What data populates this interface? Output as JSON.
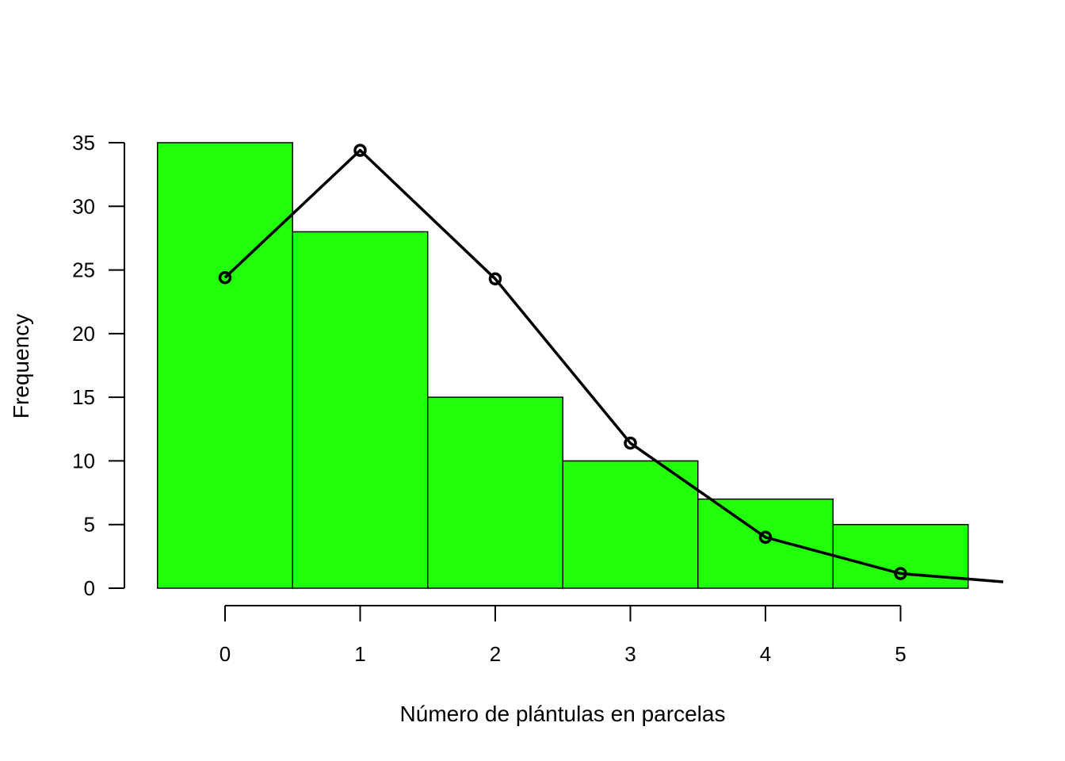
{
  "chart_data": {
    "type": "bar",
    "xlabel": "Número de plántulas en parcelas",
    "ylabel": "Frequency",
    "categories": [
      "0",
      "1",
      "2",
      "3",
      "4",
      "5"
    ],
    "values": [
      35,
      28,
      15,
      10,
      7,
      5
    ],
    "bar_color": "#22ff0a",
    "ylim": [
      0,
      35
    ],
    "yticks": [
      "0",
      "5",
      "10",
      "15",
      "20",
      "25",
      "30",
      "35"
    ],
    "xticks": [
      "0",
      "1",
      "2",
      "3",
      "4",
      "5"
    ],
    "overlay_line": {
      "x": [
        0,
        1,
        2,
        3,
        4,
        5,
        5.76
      ],
      "y": [
        24.4,
        34.4,
        24.3,
        11.4,
        4.0,
        1.15,
        0.5
      ],
      "markers": [
        0,
        1,
        2,
        3,
        4,
        5
      ],
      "color": "#000000"
    },
    "grid": false,
    "legend": "none"
  }
}
